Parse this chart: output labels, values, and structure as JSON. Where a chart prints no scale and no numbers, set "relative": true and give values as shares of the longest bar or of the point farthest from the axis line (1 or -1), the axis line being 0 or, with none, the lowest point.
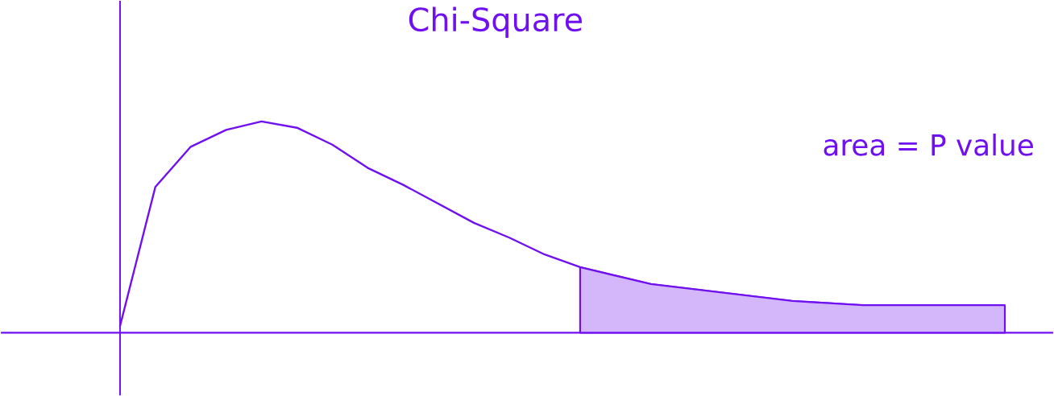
{
  "chart_data": {
    "type": "line",
    "title": "Chi-Square",
    "relative": true,
    "categories": [
      null,
      null,
      null,
      null,
      null,
      null,
      null,
      null,
      null,
      null,
      null,
      null,
      null,
      null,
      null,
      null,
      null,
      null,
      null,
      null,
      null,
      null,
      null,
      null,
      null,
      null
    ],
    "series": [
      {
        "color": "#7010f0",
        "values": [
          0.03,
          0.69,
          0.88,
          0.96,
          1.0,
          0.97,
          0.89,
          0.78,
          0.7,
          0.61,
          0.52,
          0.45,
          0.37,
          0.31,
          0.27,
          0.23,
          0.21,
          0.19,
          0.17,
          0.15,
          0.14,
          0.13,
          0.13,
          0.13,
          0.13,
          0.13
        ]
      },
      {
        "type": "area",
        "color": "#7010f0",
        "values": [
          null,
          null,
          null,
          null,
          null,
          null,
          null,
          null,
          null,
          null,
          null,
          null,
          null,
          0.31,
          0.27,
          0.23,
          0.21,
          0.19,
          0.17,
          0.15,
          0.14,
          0.13,
          0.13,
          0.13,
          0.13,
          0.13
        ]
      }
    ],
    "annotations": [
      "area = P value"
    ]
  }
}
